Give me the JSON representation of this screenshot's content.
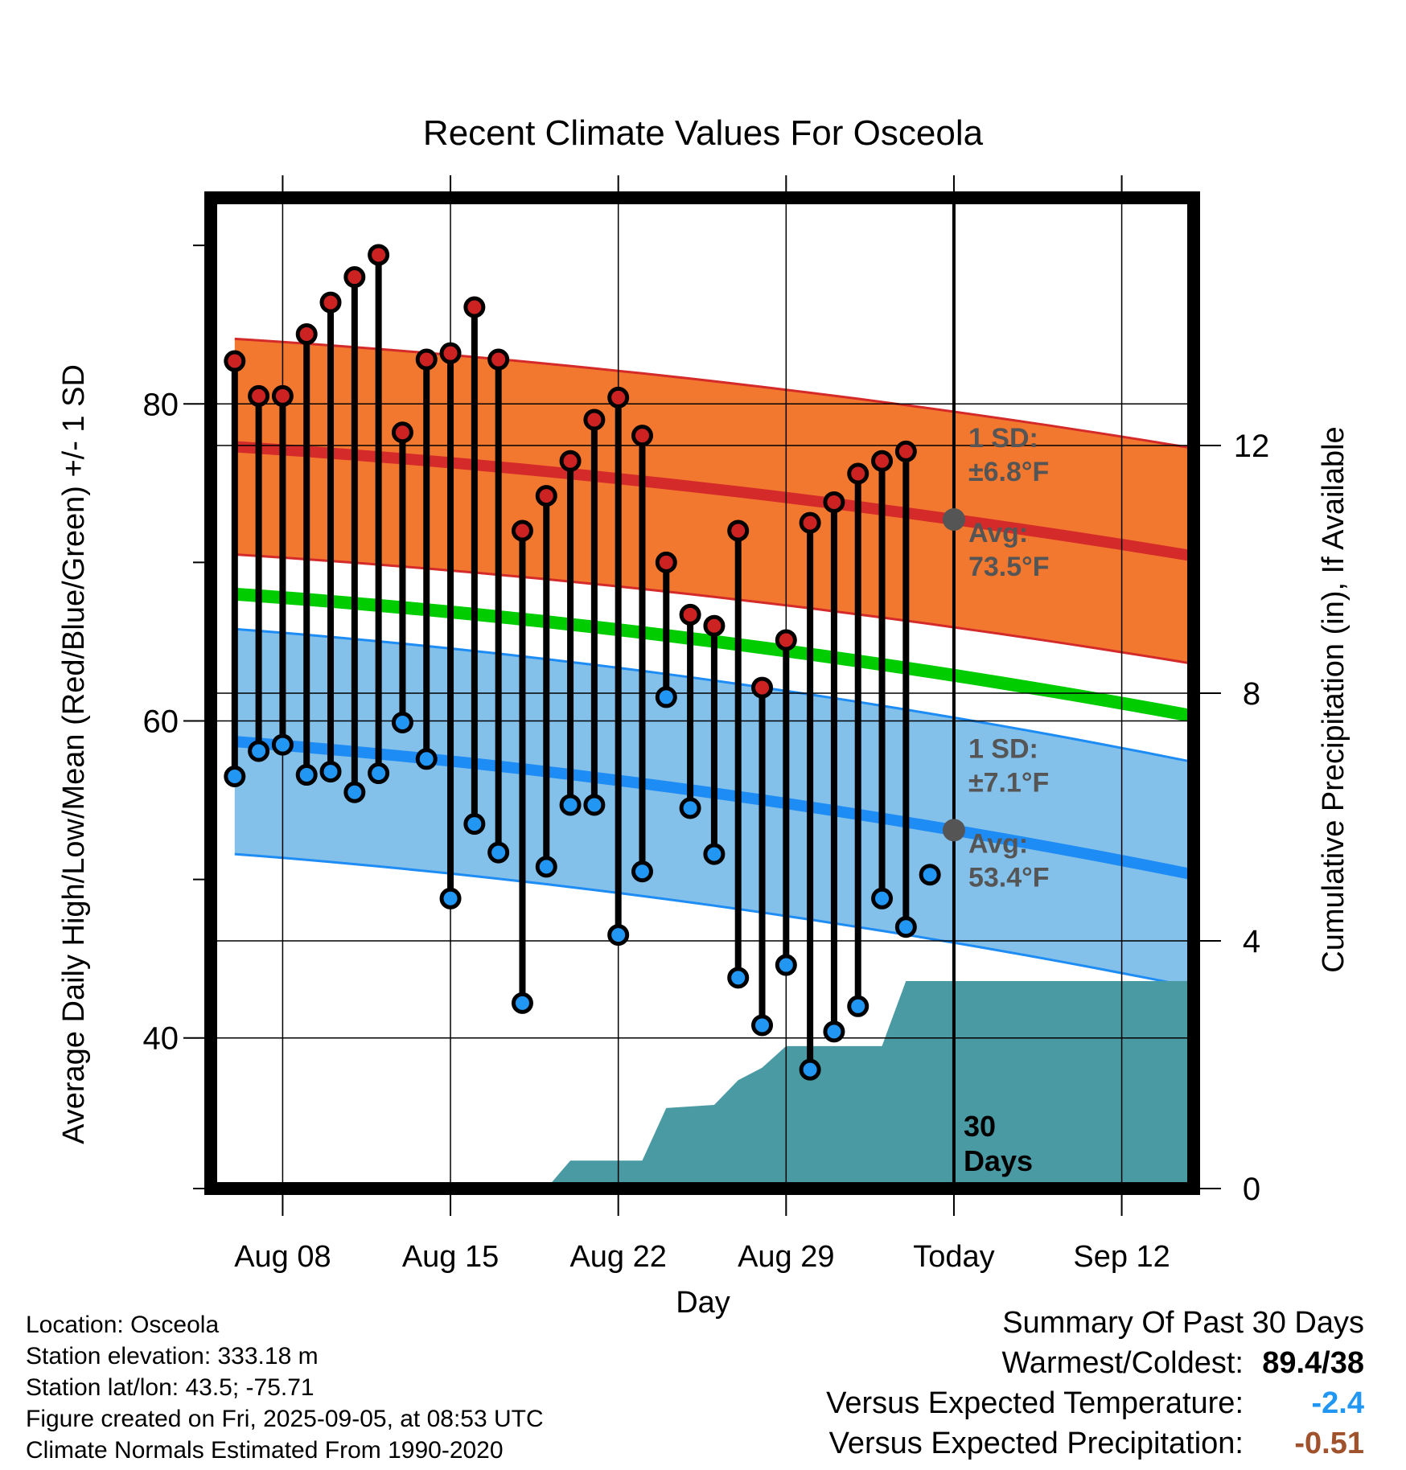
{
  "chart_data": {
    "type": "line",
    "title": "Recent Climate Values For Osceola",
    "xlabel": "Day",
    "ylabel": "Average Daily High/Low/Mean (Red/Blue/Green) +/- 1 SD",
    "y2label": "Cumulative Precipitation (in), If Available",
    "x_range": [
      "2025-08-05",
      "2025-09-15"
    ],
    "ylim": [
      30.5,
      93
    ],
    "y2lim": [
      0,
      16
    ],
    "x_ticks": [
      {
        "date": "2025-08-08",
        "label": "Aug 08"
      },
      {
        "date": "2025-08-15",
        "label": "Aug 15"
      },
      {
        "date": "2025-08-22",
        "label": "Aug 22"
      },
      {
        "date": "2025-08-29",
        "label": "Aug 29"
      },
      {
        "date": "2025-09-05",
        "label": "Today"
      },
      {
        "date": "2025-09-12",
        "label": "Sep 12"
      }
    ],
    "y_ticks": [
      40,
      60,
      80
    ],
    "y2_ticks": [
      0,
      4,
      8,
      12
    ],
    "grid": true,
    "today": "2025-09-05",
    "dates": [
      "2025-08-06",
      "2025-08-07",
      "2025-08-08",
      "2025-08-09",
      "2025-08-10",
      "2025-08-11",
      "2025-08-12",
      "2025-08-13",
      "2025-08-14",
      "2025-08-15",
      "2025-08-16",
      "2025-08-17",
      "2025-08-18",
      "2025-08-19",
      "2025-08-20",
      "2025-08-21",
      "2025-08-22",
      "2025-08-23",
      "2025-08-24",
      "2025-08-25",
      "2025-08-26",
      "2025-08-27",
      "2025-08-28",
      "2025-08-29",
      "2025-08-30",
      "2025-08-31",
      "2025-09-01",
      "2025-09-02",
      "2025-09-03",
      "2025-09-04"
    ],
    "daily_high": [
      82.7,
      80.5,
      80.5,
      84.4,
      86.4,
      88.0,
      89.4,
      78.2,
      82.8,
      83.2,
      86.1,
      82.8,
      72.0,
      74.2,
      76.4,
      79.0,
      80.4,
      78.0,
      70.0,
      66.7,
      66.0,
      72.0,
      62.1,
      65.1,
      72.5,
      73.8,
      75.6,
      76.4,
      77.0,
      null
    ],
    "daily_low": [
      56.5,
      58.1,
      58.5,
      56.6,
      56.8,
      55.5,
      56.7,
      59.9,
      57.6,
      48.8,
      53.5,
      51.7,
      42.2,
      50.8,
      54.7,
      54.7,
      46.5,
      50.5,
      61.5,
      54.5,
      51.6,
      43.8,
      40.8,
      44.6,
      38.0,
      40.4,
      42.0,
      48.8,
      47.0,
      50.3
    ],
    "normal_series": [
      {
        "name": "Avg",
        "avg_start": 77.3,
        "avg_end": 70.4,
        "sd": 6.8,
        "label_avg": "Avg:",
        "label_avg_value": "73.5°F",
        "label_sd": "1 SD:",
        "label_sd_value": "±6.8°F"
      },
      {
        "name": "Avg",
        "avg_start": 58.7,
        "avg_end": 50.3,
        "sd": 7.1,
        "label_avg": "Avg:",
        "label_avg_value": "53.4°F",
        "label_sd": "1 SD:",
        "label_sd_value": "±7.1°F"
      }
    ],
    "mean_normal": {
      "start": 68.0,
      "end": 60.3
    },
    "cumulative_precip": {
      "dates": [
        "2025-08-19",
        "2025-08-20",
        "2025-08-23",
        "2025-08-24",
        "2025-08-26",
        "2025-08-27",
        "2025-08-28",
        "2025-08-29",
        "2025-09-02",
        "2025-09-03",
        "2025-09-15"
      ],
      "values": [
        0.0,
        0.45,
        0.45,
        1.3,
        1.35,
        1.75,
        1.95,
        2.3,
        2.3,
        3.35,
        3.35
      ]
    },
    "precip_label_line1": "30",
    "precip_label_line2": "Days"
  },
  "info": {
    "location": "Location: Osceola",
    "elevation": "Station elevation: 333.18 m",
    "latlon": "Station lat/lon: 43.5; -75.71",
    "created": "Figure created on Fri, 2025-09-05, at 08:53 UTC",
    "normals": "Climate Normals Estimated From 1990-2020"
  },
  "summary": {
    "title": "Summary Of Past 30 Days",
    "warm_label": "Warmest/Coldest:",
    "warm_value": "89.4/38",
    "temp_label": "Versus Expected Temperature:",
    "temp_value": "-2.4",
    "precip_label": "Versus Expected Precipitation:",
    "precip_value": "-0.51"
  },
  "colors": {
    "high_band": "#f3782f",
    "high_line": "#d42a2a",
    "low_band": "#84c1ea",
    "low_line": "#1e8cf5",
    "mean_line": "#00cc00",
    "precip": "#4a9aa4",
    "high_dot": "#cc2222",
    "low_dot": "#2196f3",
    "temp_value": "#2196f3",
    "precip_value": "#a0522d",
    "annot": "#555555"
  }
}
